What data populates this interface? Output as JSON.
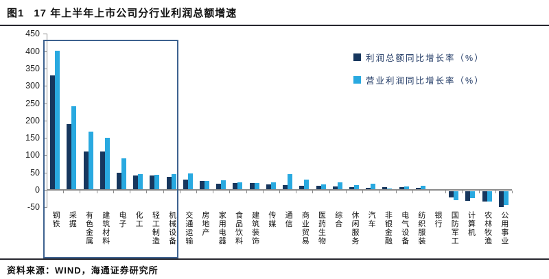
{
  "figure": {
    "label": "图1",
    "title": "17 年上半年上市公司分行业利润总额增速"
  },
  "source": "资料来源：WIND，海通证券研究所",
  "colors": {
    "series_profit_total": "#17375E",
    "series_operating_profit": "#29A9E0",
    "axis": "#8a8a8a",
    "highlight_box": "#3D618F",
    "rule": "#26262e"
  },
  "chart_data": {
    "type": "bar",
    "title": "17 年上半年上市公司分行业利润总额增速",
    "ylim": [
      -50,
      450
    ],
    "yticks": [
      450,
      400,
      350,
      300,
      250,
      200,
      150,
      100,
      50,
      0,
      -50
    ],
    "grid": false,
    "legend_position": "top-right-inside",
    "highlighted_categories": [
      "钢铁",
      "采掘",
      "有色金属",
      "建筑材料",
      "电子",
      "化工",
      "轻工制造",
      "机械设备"
    ],
    "categories": [
      "钢铁",
      "采掘",
      "有色金属",
      "建筑材料",
      "电子",
      "化工",
      "轻工制造",
      "机械设备",
      "交通运输",
      "房地产",
      "家用电器",
      "食品饮料",
      "建筑装饰",
      "传媒",
      "通信",
      "商业贸易",
      "医药生物",
      "综合",
      "休闲服务",
      "汽车",
      "非银金融",
      "电气设备",
      "纺织服装",
      "银行",
      "国防军工",
      "计算机",
      "农林牧渔",
      "公用事业"
    ],
    "series": [
      {
        "name": "利润总额同比增长率（%）",
        "color": "#17375E",
        "values": [
          330,
          190,
          110,
          110,
          50,
          42,
          41,
          38,
          30,
          26,
          18,
          19,
          19,
          16,
          14,
          11,
          11,
          10,
          8,
          6,
          7,
          8,
          6,
          2,
          -18,
          -27,
          -30,
          -45
        ]
      },
      {
        "name": "营业利润同比增长率（%）",
        "color": "#29A9E0",
        "values": [
          402,
          241,
          168,
          151,
          90,
          45,
          44,
          45,
          47,
          25,
          28,
          21,
          20,
          22,
          46,
          29,
          16,
          22,
          13,
          18,
          4,
          10,
          11,
          1,
          -25,
          -20,
          -30,
          -40
        ]
      }
    ]
  }
}
